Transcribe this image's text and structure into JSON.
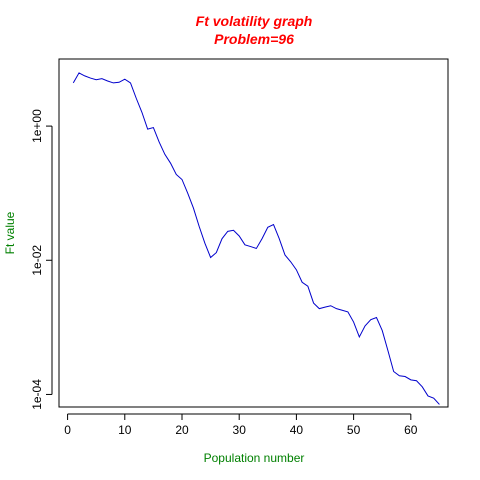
{
  "chart_data": {
    "type": "line",
    "title": "Ft volatility graph",
    "subtitle": "Problem=96",
    "xlabel": "Population number",
    "ylabel": "Ft value",
    "x_ticks": [
      0,
      10,
      20,
      30,
      40,
      50,
      60
    ],
    "y_ticks": [
      {
        "value": 1,
        "label": "1e+00"
      },
      {
        "value": 0.01,
        "label": "1e-02"
      },
      {
        "value": 0.0001,
        "label": "1e-04"
      }
    ],
    "xlim": [
      -1.5,
      66.5
    ],
    "ylim": [
      6.5e-05,
      10
    ],
    "y_scale": "log",
    "grid": false,
    "legend": "none",
    "colors": {
      "title": "#ff0000",
      "axis_labels": "#008000",
      "line": "#0000cc"
    },
    "series": [
      {
        "x": [
          1,
          2,
          3,
          4,
          5,
          6,
          7,
          8,
          9,
          10,
          11,
          12,
          13,
          14,
          15,
          16,
          17,
          18,
          19,
          20,
          21,
          22,
          23,
          24,
          25,
          26,
          27,
          28,
          29,
          30,
          31,
          32,
          33,
          34,
          35,
          36,
          37,
          38,
          39,
          40,
          41,
          42,
          43,
          44,
          45,
          46,
          47,
          48,
          49,
          50,
          51,
          52,
          53,
          54,
          55,
          56,
          57,
          58,
          59,
          60,
          61,
          62,
          63,
          64,
          65
        ],
        "y": [
          4.4,
          6.2,
          5.6,
          5.2,
          4.9,
          5.1,
          4.7,
          4.4,
          4.5,
          5.0,
          4.4,
          2.6,
          1.6,
          0.9,
          0.95,
          0.58,
          0.38,
          0.28,
          0.19,
          0.16,
          0.1,
          0.06,
          0.032,
          0.018,
          0.011,
          0.013,
          0.021,
          0.027,
          0.028,
          0.023,
          0.017,
          0.016,
          0.015,
          0.021,
          0.031,
          0.034,
          0.021,
          0.012,
          0.0095,
          0.0072,
          0.0047,
          0.0041,
          0.0023,
          0.0019,
          0.002,
          0.0021,
          0.0019,
          0.0018,
          0.0017,
          0.0012,
          0.00072,
          0.00105,
          0.0013,
          0.0014,
          0.0009,
          0.00045,
          0.00022,
          0.00019,
          0.000185,
          0.000165,
          0.00016,
          0.00013,
          9.5e-05,
          8.8e-05,
          7.1e-05
        ]
      }
    ]
  }
}
